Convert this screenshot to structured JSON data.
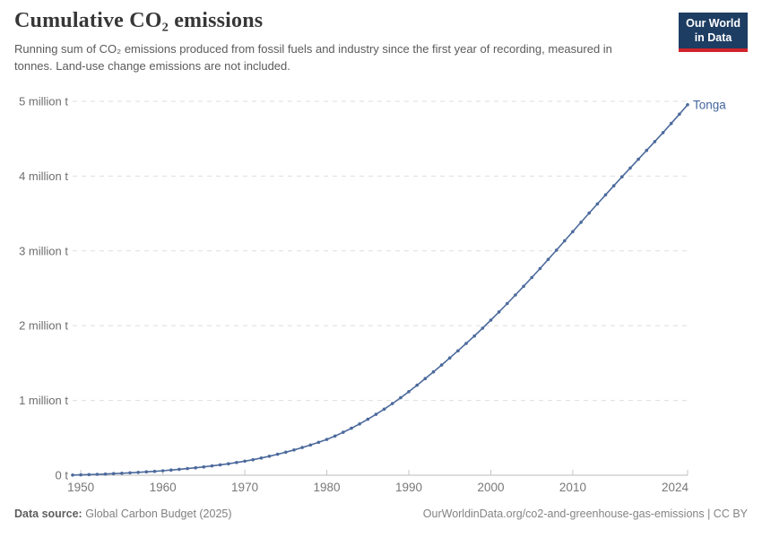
{
  "header": {
    "title": "Cumulative CO₂ emissions",
    "subtitle": "Running sum of CO₂ emissions produced from fossil fuels and industry since the first year of recording, measured in tonnes. Land-use change emissions are not included.",
    "logo_line1": "Our World",
    "logo_line2": "in Data"
  },
  "colors": {
    "line": "#4c6a9c",
    "series_label": "#44659c",
    "logo_bg": "#1d3d63",
    "logo_underline": "#cf242b",
    "gridline": "#dedede",
    "axis": "#b9b9b9"
  },
  "chart_data": {
    "type": "line",
    "title": "Cumulative CO₂ emissions",
    "unit": "million tonnes",
    "xlabel": "",
    "ylabel": "",
    "grid": "horizontal-dashed",
    "legend_position": "end-of-line-label",
    "ylim": [
      0,
      5
    ],
    "xlim": [
      1949,
      2024
    ],
    "x_ticks": [
      1950,
      1960,
      1970,
      1980,
      1990,
      2000,
      2010,
      2024
    ],
    "y_ticks": [
      {
        "value": 0,
        "label": "0 t"
      },
      {
        "value": 1,
        "label": "1 million t"
      },
      {
        "value": 2,
        "label": "2 million t"
      },
      {
        "value": 3,
        "label": "3 million t"
      },
      {
        "value": 4,
        "label": "4 million t"
      },
      {
        "value": 5,
        "label": "5 million t"
      }
    ],
    "x": [
      1949,
      1950,
      1951,
      1952,
      1953,
      1954,
      1955,
      1956,
      1957,
      1958,
      1959,
      1960,
      1961,
      1962,
      1963,
      1964,
      1965,
      1966,
      1967,
      1968,
      1969,
      1970,
      1971,
      1972,
      1973,
      1974,
      1975,
      1976,
      1977,
      1978,
      1979,
      1980,
      1981,
      1982,
      1983,
      1984,
      1985,
      1986,
      1987,
      1988,
      1989,
      1990,
      1991,
      1992,
      1993,
      1994,
      1995,
      1996,
      1997,
      1998,
      1999,
      2000,
      2001,
      2002,
      2003,
      2004,
      2005,
      2006,
      2007,
      2008,
      2009,
      2010,
      2011,
      2012,
      2013,
      2014,
      2015,
      2016,
      2017,
      2018,
      2019,
      2020,
      2021,
      2022,
      2023,
      2024
    ],
    "series": [
      {
        "name": "Tonga",
        "color": "#4c6a9c",
        "values": [
          0.002,
          0.005,
          0.008,
          0.012,
          0.016,
          0.021,
          0.026,
          0.032,
          0.038,
          0.045,
          0.052,
          0.06,
          0.069,
          0.079,
          0.089,
          0.1,
          0.112,
          0.125,
          0.139,
          0.154,
          0.17,
          0.188,
          0.208,
          0.23,
          0.254,
          0.28,
          0.308,
          0.338,
          0.37,
          0.404,
          0.44,
          0.478,
          0.524,
          0.574,
          0.628,
          0.686,
          0.748,
          0.814,
          0.884,
          0.958,
          1.036,
          1.118,
          1.204,
          1.292,
          1.382,
          1.474,
          1.568,
          1.664,
          1.762,
          1.862,
          1.966,
          2.074,
          2.184,
          2.296,
          2.41,
          2.526,
          2.644,
          2.764,
          2.886,
          3.01,
          3.134,
          3.258,
          3.382,
          3.506,
          3.628,
          3.75,
          3.87,
          3.99,
          4.108,
          4.226,
          4.344,
          4.462,
          4.582,
          4.704,
          4.828,
          4.954
        ]
      }
    ]
  },
  "footer": {
    "datasource_label": "Data source:",
    "datasource_value": "Global Carbon Budget (2025)",
    "credit": "OurWorldinData.org/co2-and-greenhouse-gas-emissions | CC BY"
  }
}
